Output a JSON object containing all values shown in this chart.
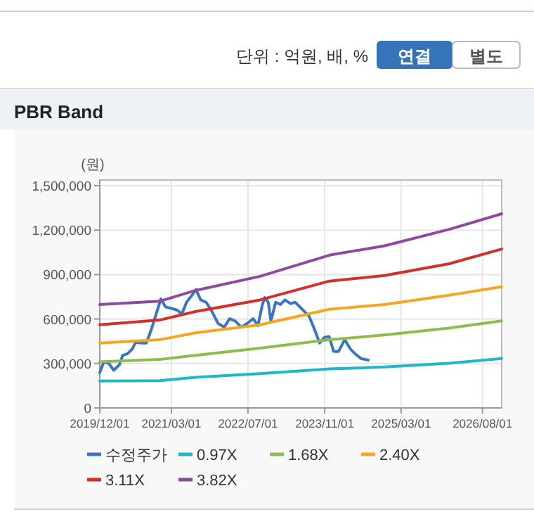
{
  "chart_data": {
    "type": "line",
    "title": "PBR Band",
    "ylabel": "(원)",
    "annotations": [
      "단위 : 억원, 배, %",
      "연결",
      "별도"
    ],
    "xlim": [
      "2019-12-01",
      "2026-12-01"
    ],
    "xticks": [
      {
        "value": "2019-12-01",
        "label": "2019/12/01"
      },
      {
        "value": "2021-03-01",
        "label": "2021/03/01"
      },
      {
        "value": "2022-07-01",
        "label": "2022/07/01"
      },
      {
        "value": "2023-11-01",
        "label": "2023/11/01"
      },
      {
        "value": "2025-03-01",
        "label": "2025/03/01"
      },
      {
        "value": "2026-08-01",
        "label": "2026/08/01"
      }
    ],
    "ylim": [
      0,
      1500000
    ],
    "yticks": [
      0,
      {
        "value": 300000,
        "label": "300,000"
      },
      {
        "value": 600000,
        "label": "600,000"
      },
      {
        "value": 900000,
        "label": "900,000"
      },
      {
        "value": 1200000,
        "label": "1,200,000"
      },
      {
        "value": 1500000,
        "label": "1,500,000"
      }
    ],
    "grid": true,
    "legend": "bottom",
    "marker": "none",
    "line_style": "solid",
    "series": [
      {
        "name": "수정주가",
        "color": "#3a75c4",
        "x": [
          "2019-12-01",
          "2019-12-27",
          "2020-01-27",
          "2020-02-28",
          "2020-04-04",
          "2020-04-25",
          "2020-05-24",
          "2020-06-24",
          "2020-07-17",
          "2020-08-17",
          "2020-09-22",
          "2020-10-22",
          "2020-11-24",
          "2020-12-24",
          "2021-01-22",
          "2021-02-28",
          "2021-04-07",
          "2021-05-06",
          "2021-06-05",
          "2021-07-10",
          "2021-08-04",
          "2021-09-03",
          "2021-10-08",
          "2021-11-14",
          "2021-12-22",
          "2022-01-31",
          "2022-03-06",
          "2022-04-10",
          "2022-05-19",
          "2022-06-27",
          "2022-08-03",
          "2022-09-02",
          "2022-10-01",
          "2022-10-16",
          "2022-11-07",
          "2022-11-24",
          "2022-12-24",
          "2023-01-24",
          "2023-02-21",
          "2023-03-28",
          "2023-04-28",
          "2023-05-27",
          "2023-06-26",
          "2023-07-25",
          "2023-08-25",
          "2023-09-30",
          "2023-10-30",
          "2023-11-29",
          "2023-12-28",
          "2024-01-28",
          "2024-03-07",
          "2024-04-14",
          "2024-05-13",
          "2024-06-19",
          "2024-08-04"
        ],
        "values": [
          238000,
          311000,
          301000,
          254000,
          292000,
          355000,
          365000,
          396000,
          444000,
          438000,
          438000,
          523000,
          634000,
          736000,
          682000,
          672000,
          660000,
          634000,
          713000,
          761000,
          799000,
          729000,
          713000,
          650000,
          571000,
          545000,
          602000,
          587000,
          545000,
          571000,
          602000,
          555000,
          698000,
          745000,
          713000,
          587000,
          713000,
          698000,
          729000,
          704000,
          713000,
          682000,
          650000,
          618000,
          539000,
          438000,
          476000,
          482000,
          381000,
          381000,
          460000,
          396000,
          365000,
          333000,
          323000
        ]
      },
      {
        "name": "0.97X",
        "color": "#21b6c8",
        "x": [
          "2019-12-01",
          "2020-12-16",
          "2021-08-01",
          "2022-09-16",
          "2023-12-01",
          "2024-11-16",
          "2026-01-01",
          "2026-12-01"
        ],
        "values": [
          181000,
          184000,
          206000,
          231000,
          263000,
          276000,
          301000,
          333000
        ]
      },
      {
        "name": "1.68X",
        "color": "#8fbc4f",
        "x": [
          "2019-12-01",
          "2020-12-16",
          "2021-08-01",
          "2022-09-16",
          "2023-12-01",
          "2024-11-16",
          "2026-01-01",
          "2026-12-01"
        ],
        "values": [
          311000,
          327000,
          355000,
          403000,
          460000,
          492000,
          539000,
          587000
        ]
      },
      {
        "name": "2.40X",
        "color": "#f5a623",
        "x": [
          "2019-12-01",
          "2020-12-16",
          "2021-08-01",
          "2022-09-16",
          "2023-12-01",
          "2024-11-16",
          "2026-01-01",
          "2026-12-01"
        ],
        "values": [
          438000,
          460000,
          507000,
          561000,
          666000,
          698000,
          761000,
          818000
        ]
      },
      {
        "name": "3.11X",
        "color": "#d0312d",
        "x": [
          "2019-12-01",
          "2020-12-16",
          "2021-08-01",
          "2022-09-16",
          "2023-12-01",
          "2024-11-16",
          "2026-01-01",
          "2026-12-01"
        ],
        "values": [
          561000,
          593000,
          650000,
          729000,
          856000,
          894000,
          973000,
          1072000
        ]
      },
      {
        "name": "3.82X",
        "color": "#8e4a9e",
        "x": [
          "2019-12-01",
          "2020-12-16",
          "2021-08-01",
          "2022-09-16",
          "2023-12-01",
          "2024-11-16",
          "2026-01-01",
          "2026-12-01"
        ],
        "values": [
          698000,
          720000,
          793000,
          888000,
          1031000,
          1094000,
          1205000,
          1310000
        ]
      }
    ]
  }
}
